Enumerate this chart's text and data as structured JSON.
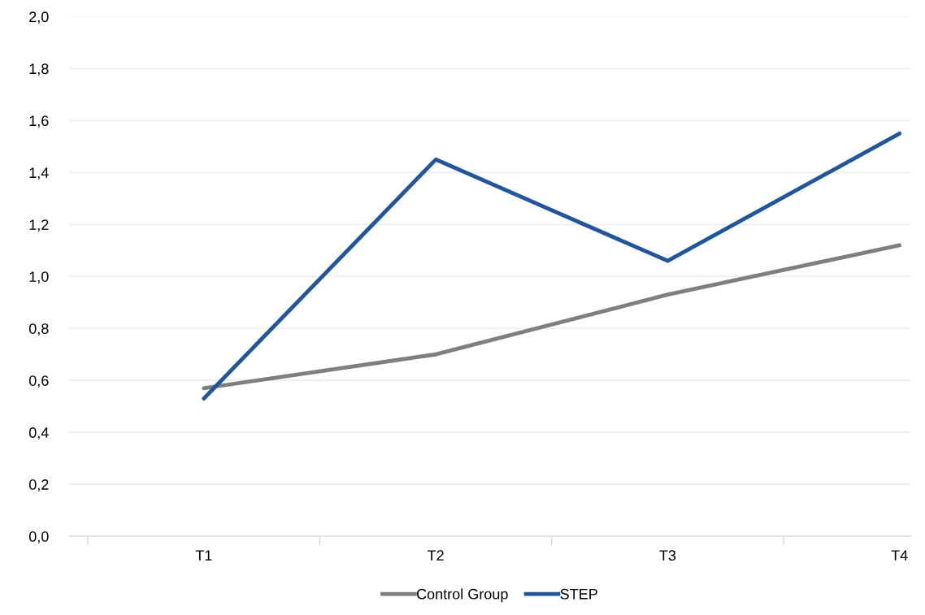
{
  "chart_data": {
    "type": "line",
    "categories": [
      "T1",
      "T2",
      "T3",
      "T4"
    ],
    "series": [
      {
        "name": "Control Group",
        "color": "#7f7f7f",
        "values": [
          0.57,
          0.7,
          0.93,
          1.12
        ]
      },
      {
        "name": "STEP",
        "color": "#1f56a0",
        "values": [
          0.53,
          1.45,
          1.06,
          1.55
        ]
      }
    ],
    "ylim": [
      0,
      2
    ],
    "yticks": [
      {
        "value": 0,
        "label": "0,0"
      },
      {
        "value": 0.2,
        "label": "0,2"
      },
      {
        "value": 0.4,
        "label": "0,4"
      },
      {
        "value": 0.6,
        "label": "0,6"
      },
      {
        "value": 0.8,
        "label": "0,8"
      },
      {
        "value": 1.0,
        "label": "1,0"
      },
      {
        "value": 1.2,
        "label": "1,2"
      },
      {
        "value": 1.4,
        "label": "1,4"
      },
      {
        "value": 1.6,
        "label": "1,6"
      },
      {
        "value": 1.8,
        "label": "1,8"
      },
      {
        "value": 2.0,
        "label": "2,0"
      }
    ],
    "grid": "y",
    "legend": "bottom",
    "marker": "none",
    "line_style": "solid"
  }
}
